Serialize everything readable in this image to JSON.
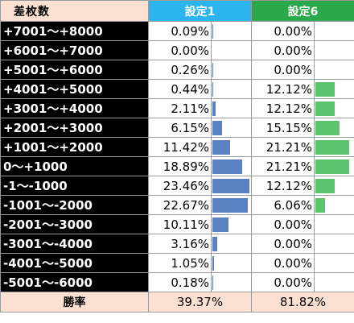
{
  "headers": {
    "range": "差枚数",
    "setting1": "設定1",
    "setting6": "設定6"
  },
  "rows": [
    {
      "range": "+7001～+8000",
      "s1": "0.09%",
      "s6": "0.00%"
    },
    {
      "range": "+6001～+7000",
      "s1": "0.00%",
      "s6": "0.00%"
    },
    {
      "range": "+5001～+6000",
      "s1": "0.26%",
      "s6": "0.00%"
    },
    {
      "range": "+4001～+5000",
      "s1": "0.44%",
      "s6": "12.12%"
    },
    {
      "range": "+3001～+4000",
      "s1": "2.11%",
      "s6": "12.12%"
    },
    {
      "range": "+2001～+3000",
      "s1": "6.15%",
      "s6": "15.15%"
    },
    {
      "range": "+1001～+2000",
      "s1": "11.42%",
      "s6": "21.21%"
    },
    {
      "range": "0～+1000",
      "s1": "18.89%",
      "s6": "21.21%"
    },
    {
      "range": "-1～-1000",
      "s1": "23.46%",
      "s6": "12.12%"
    },
    {
      "range": "-1001～-2000",
      "s1": "22.67%",
      "s6": "6.06%"
    },
    {
      "range": "-2001～-3000",
      "s1": "10.11%",
      "s6": "0.00%"
    },
    {
      "range": "-3001～-4000",
      "s1": "3.16%",
      "s6": "0.00%"
    },
    {
      "range": "-4001～-5000",
      "s1": "1.05%",
      "s6": "0.00%"
    },
    {
      "range": "-5001～-6000",
      "s1": "0.18%",
      "s6": "0.00%"
    }
  ],
  "win_rate": {
    "label": "勝率",
    "s1": "39.37%",
    "s6": "81.82%"
  },
  "colors": {
    "header_setting1": "#2cb4ef",
    "header_setting6": "#2ba84a",
    "bar_setting1": "#5a82c2",
    "bar_setting6": "#5cc46c",
    "header_range_bg": "#fce1d2",
    "range_cell_bg": "#000000"
  },
  "chart_data": {
    "type": "table",
    "categories": [
      "+7001～+8000",
      "+6001～+7000",
      "+5001～+6000",
      "+4001～+5000",
      "+3001～+4000",
      "+2001～+3000",
      "+1001～+2000",
      "0～+1000",
      "-1～-1000",
      "-1001～-2000",
      "-2001～-3000",
      "-3001～-4000",
      "-4001～-5000",
      "-5001～-6000"
    ],
    "series": [
      {
        "name": "設定1",
        "values": [
          0.09,
          0.0,
          0.26,
          0.44,
          2.11,
          6.15,
          11.42,
          18.89,
          23.46,
          22.67,
          10.11,
          3.16,
          1.05,
          0.18
        ]
      },
      {
        "name": "設定6",
        "values": [
          0.0,
          0.0,
          0.0,
          12.12,
          12.12,
          15.15,
          21.21,
          21.21,
          12.12,
          6.06,
          0.0,
          0.0,
          0.0,
          0.0
        ]
      }
    ],
    "bar_max": 23.46
  }
}
